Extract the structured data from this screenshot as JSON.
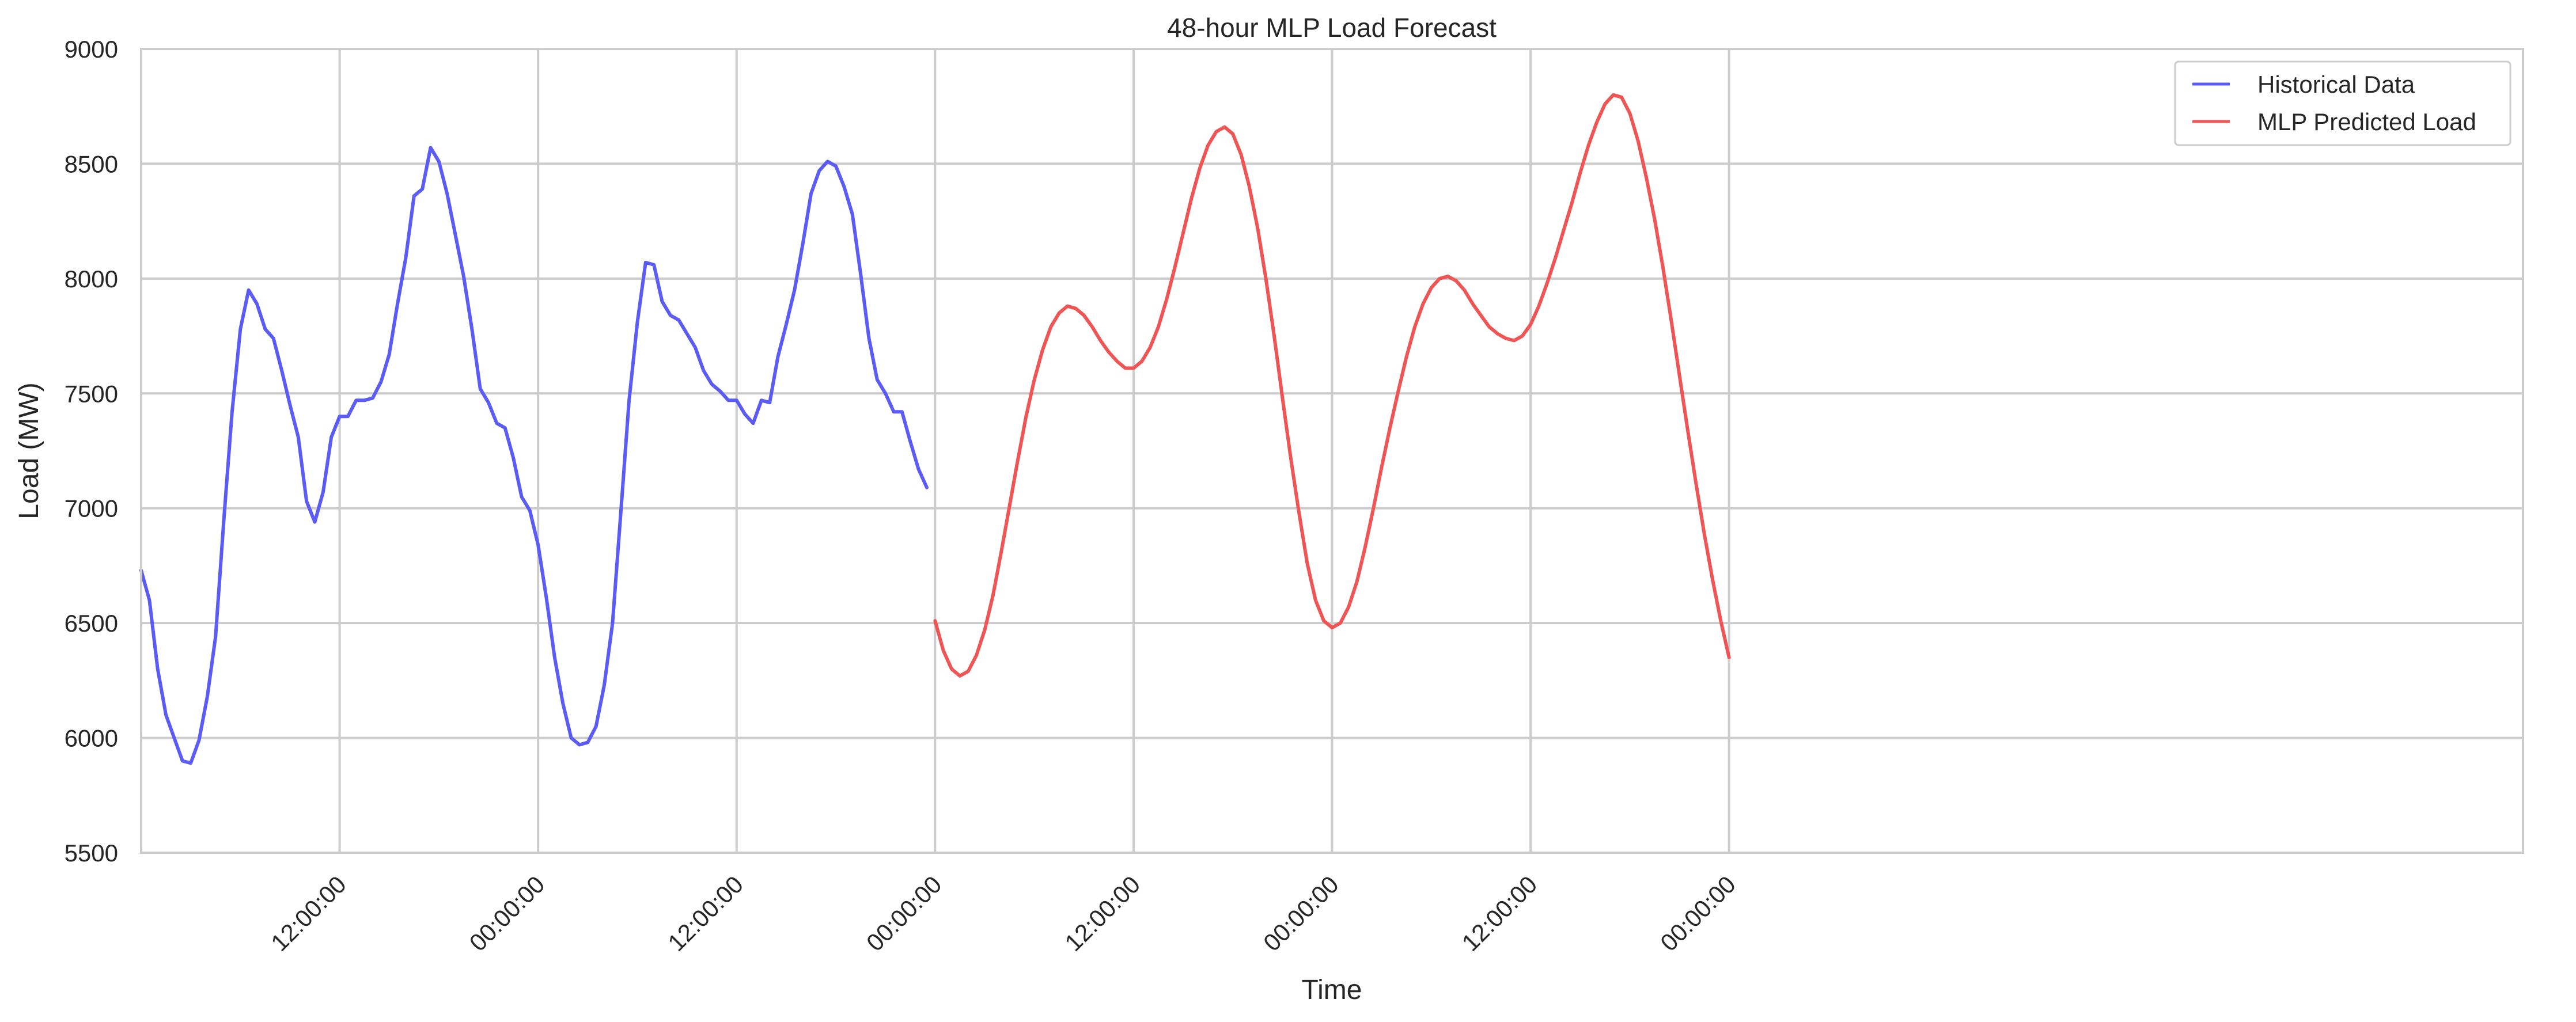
{
  "chart_data": {
    "type": "line",
    "title": "48-hour MLP Load Forecast",
    "xlabel": "Time",
    "ylabel": "Load (MW)",
    "ylim": [
      5500,
      9000
    ],
    "xlim_hours": [
      0,
      144
    ],
    "x_tick_labels": [
      "12:00:00",
      "00:00:00",
      "12:00:00",
      "00:00:00",
      "12:00:00",
      "00:00:00",
      "12:00:00",
      "00:00:00"
    ],
    "x_ticks_hours": [
      12,
      24,
      36,
      48,
      60,
      72,
      84,
      96
    ],
    "y_ticks": [
      5500,
      6000,
      6500,
      7000,
      7500,
      8000,
      8500,
      9000
    ],
    "grid": true,
    "legend_position": "top-right",
    "series": [
      {
        "name": "Historical Data",
        "color": "#5b5bf5",
        "x_hours": [
          0,
          0.5,
          1,
          1.5,
          2,
          2.5,
          3,
          3.5,
          4,
          4.5,
          5,
          5.5,
          6,
          6.5,
          7,
          7.5,
          8,
          8.5,
          9,
          9.5,
          10,
          10.5,
          11,
          11.5,
          12,
          12.5,
          13,
          13.5,
          14,
          14.5,
          15,
          15.5,
          16,
          16.5,
          17,
          17.5,
          18,
          18.5,
          19,
          19.5,
          20,
          20.5,
          21,
          21.5,
          22,
          22.5,
          23,
          23.5,
          24,
          24.5,
          25,
          25.5,
          26,
          26.5,
          27,
          27.5,
          28,
          28.5,
          29,
          29.5,
          30,
          30.5,
          31,
          31.5,
          32,
          32.5,
          33,
          33.5,
          34,
          34.5,
          35,
          35.5,
          36,
          36.5,
          37,
          37.5,
          38,
          38.5,
          39,
          39.5,
          40,
          40.5,
          41,
          41.5,
          42,
          42.5,
          43,
          43.5,
          44,
          44.5,
          45,
          45.5,
          46,
          46.5,
          47,
          47.5
        ],
        "values": [
          6730,
          6600,
          6300,
          6100,
          6000,
          5900,
          5890,
          5990,
          6180,
          6440,
          6950,
          7420,
          7780,
          7950,
          7890,
          7780,
          7740,
          7600,
          7450,
          7310,
          7030,
          6940,
          7070,
          7310,
          7400,
          7400,
          7470,
          7470,
          7480,
          7550,
          7670,
          7890,
          8090,
          8360,
          8390,
          8570,
          8510,
          8370,
          8190,
          8010,
          7780,
          7520,
          7460,
          7370,
          7350,
          7220,
          7050,
          6990,
          6840,
          6610,
          6350,
          6150,
          6000,
          5970,
          5980,
          6050,
          6230,
          6500,
          6980,
          7470,
          7810,
          8070,
          8060,
          7900,
          7840,
          7820,
          7760,
          7700,
          7600,
          7540,
          7510,
          7470,
          7470,
          7410,
          7370,
          7470,
          7460,
          7660,
          7800,
          7950,
          8150,
          8370,
          8470,
          8510,
          8490,
          8400,
          8280,
          8020,
          7740,
          7560,
          7500,
          7420,
          7420,
          7290,
          7170,
          7090
        ]
      },
      {
        "name": "MLP Predicted Load",
        "color": "#f05555",
        "x_hours": [
          48,
          48.5,
          49,
          49.5,
          50,
          50.5,
          51,
          51.5,
          52,
          52.5,
          53,
          53.5,
          54,
          54.5,
          55,
          55.5,
          56,
          56.5,
          57,
          57.5,
          58,
          58.5,
          59,
          59.5,
          60,
          60.5,
          61,
          61.5,
          62,
          62.5,
          63,
          63.5,
          64,
          64.5,
          65,
          65.5,
          66,
          66.5,
          67,
          67.5,
          68,
          68.5,
          69,
          69.5,
          70,
          70.5,
          71,
          71.5,
          72,
          72.5,
          73,
          73.5,
          74,
          74.5,
          75,
          75.5,
          76,
          76.5,
          77,
          77.5,
          78,
          78.5,
          79,
          79.5,
          80,
          80.5,
          81,
          81.5,
          82,
          82.5,
          83,
          83.5,
          84,
          84.5,
          85,
          85.5,
          86,
          86.5,
          87,
          87.5,
          88,
          88.5,
          89,
          89.5,
          90,
          90.5,
          91,
          91.5,
          92,
          92.5,
          93,
          93.5,
          94,
          94.5,
          95,
          95.5,
          96
        ],
        "values": [
          6510,
          6380,
          6300,
          6270,
          6290,
          6360,
          6470,
          6620,
          6810,
          7010,
          7210,
          7400,
          7560,
          7690,
          7790,
          7850,
          7880,
          7870,
          7840,
          7790,
          7730,
          7680,
          7640,
          7610,
          7610,
          7640,
          7700,
          7790,
          7910,
          8050,
          8200,
          8350,
          8480,
          8580,
          8640,
          8660,
          8630,
          8540,
          8400,
          8220,
          8000,
          7750,
          7480,
          7220,
          6980,
          6760,
          6600,
          6510,
          6480,
          6500,
          6570,
          6680,
          6830,
          7000,
          7180,
          7350,
          7510,
          7660,
          7790,
          7890,
          7960,
          8000,
          8010,
          7990,
          7950,
          7890,
          7840,
          7790,
          7760,
          7740,
          7730,
          7750,
          7800,
          7880,
          7980,
          8090,
          8210,
          8330,
          8460,
          8580,
          8680,
          8760,
          8800,
          8790,
          8720,
          8600,
          8440,
          8260,
          8050,
          7820,
          7580,
          7340,
          7110,
          6890,
          6690,
          6510,
          6350
        ]
      }
    ]
  }
}
